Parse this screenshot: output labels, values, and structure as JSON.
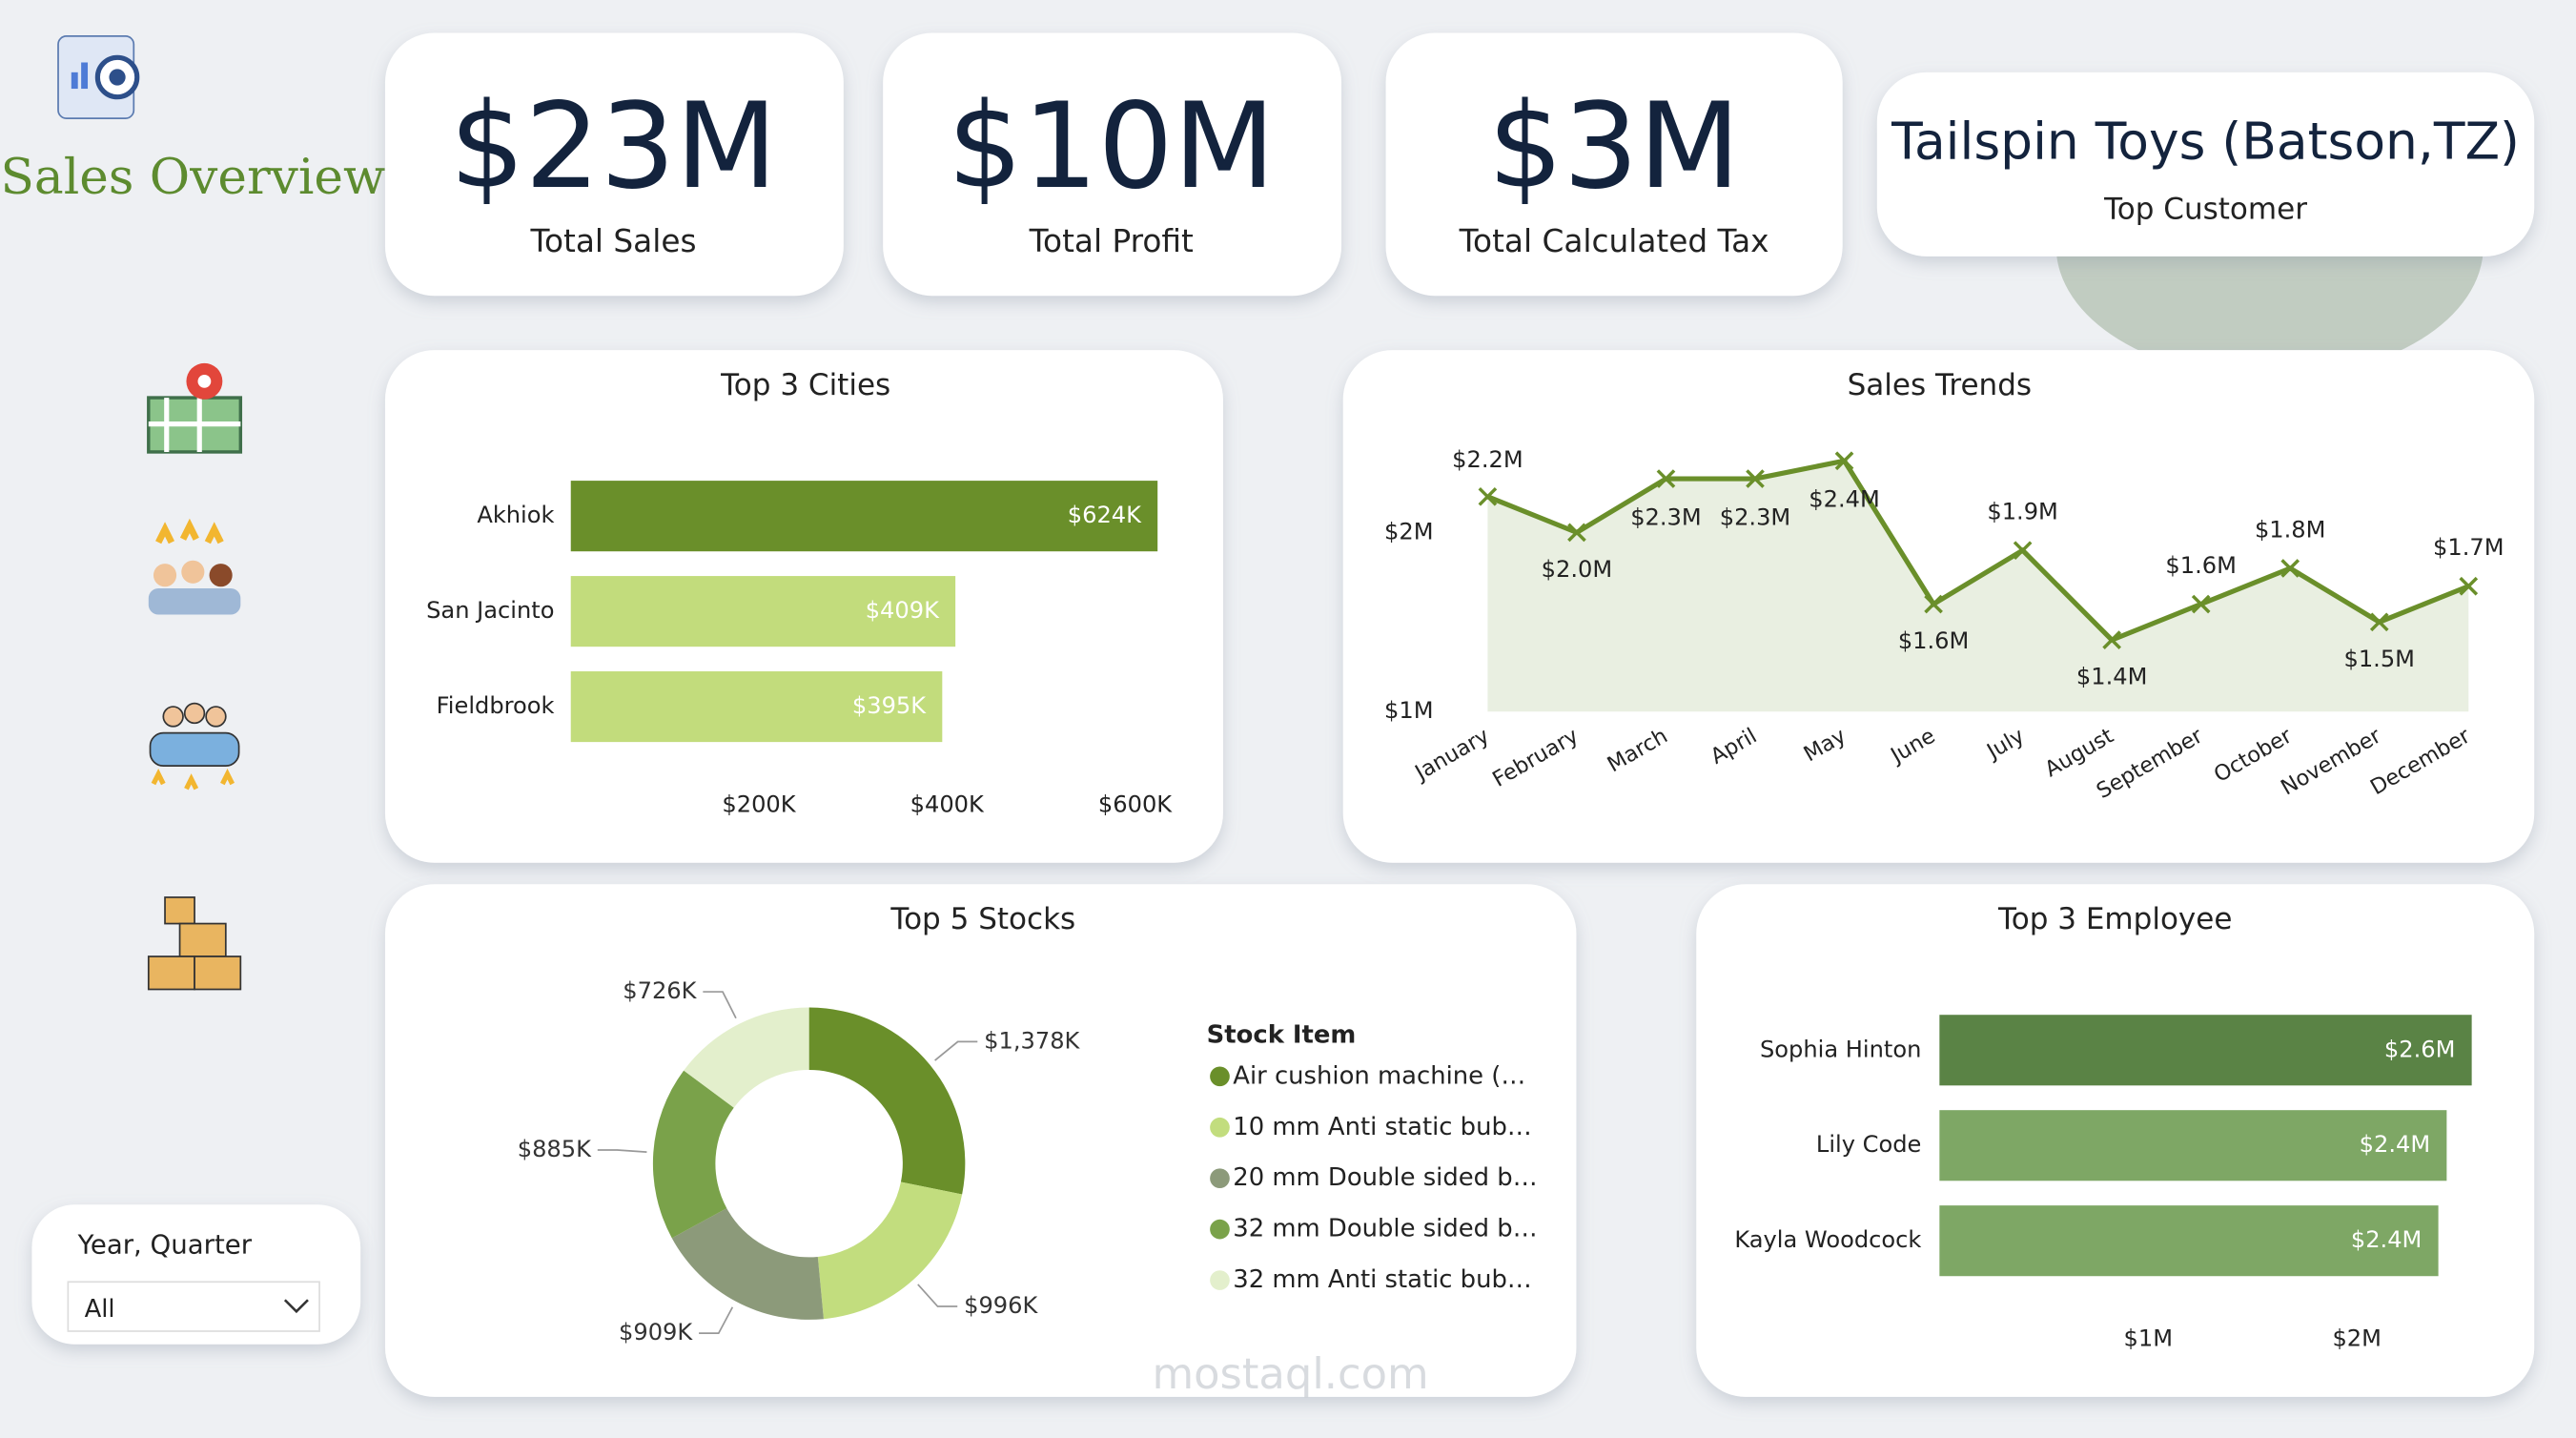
{
  "header": {
    "title": "Sales Overview"
  },
  "kpis": [
    {
      "value": "$23M",
      "label": "Total Sales"
    },
    {
      "value": "$10M",
      "label": "Total Profit"
    },
    {
      "value": "$3M",
      "label": "Total Calculated Tax"
    }
  ],
  "top_customer": {
    "value": "Tailspin Toys (Batson,TZ)",
    "label": "Top Customer"
  },
  "filter": {
    "label": "Year, Quarter",
    "value": "All"
  },
  "watermark": "mostaql.com",
  "chart_data": [
    {
      "type": "hbar",
      "title": "Top 3 Cities",
      "categories": [
        "Akhiok",
        "San Jacinto",
        "Fieldbrook"
      ],
      "values": [
        624000,
        409000,
        395000
      ],
      "value_labels": [
        "$624K",
        "$409K",
        "$395K"
      ],
      "colors": [
        "#6a8f2a",
        "#c2dc7c",
        "#c2dc7c"
      ],
      "xlim": [
        0,
        650000
      ],
      "xticks": [
        {
          "value": 200000,
          "label": "$200K"
        },
        {
          "value": 400000,
          "label": "$400K"
        },
        {
          "value": 600000,
          "label": "$600K"
        }
      ]
    },
    {
      "type": "line",
      "title": "Sales Trends",
      "categories": [
        "January",
        "February",
        "March",
        "April",
        "May",
        "June",
        "July",
        "August",
        "September",
        "October",
        "November",
        "December"
      ],
      "values": [
        2200000,
        2000000,
        2300000,
        2300000,
        2400000,
        1600000,
        1900000,
        1400000,
        1600000,
        1800000,
        1500000,
        1700000
      ],
      "value_labels": [
        "$2.2M",
        "$2.0M",
        "$2.3M",
        "$2.3M",
        "$2.4M",
        "$1.6M",
        "$1.9M",
        "$1.4M",
        "$1.6M",
        "$1.8M",
        "$1.5M",
        "$1.7M"
      ],
      "color": "#6a8f2a",
      "ylim": [
        1000000,
        2500000
      ],
      "yticks": [
        {
          "value": 1000000,
          "label": "$1M"
        },
        {
          "value": 2000000,
          "label": "$2M"
        }
      ]
    },
    {
      "type": "donut",
      "title": "Top 5 Stocks",
      "legend_title": "Stock Item",
      "categories": [
        "Air cushion machine (…",
        "10 mm Anti static bub…",
        "20 mm Double sided b…",
        "32 mm Double sided b…",
        "32 mm Anti static bub…"
      ],
      "values": [
        1378000,
        996000,
        909000,
        885000,
        726000
      ],
      "value_labels": [
        "$1,378K",
        "$996K",
        "$909K",
        "$885K",
        "$726K"
      ],
      "colors": [
        "#6a8f2a",
        "#c2dd7e",
        "#8c9a7a",
        "#7aa24a",
        "#e3efcc"
      ]
    },
    {
      "type": "hbar",
      "title": "Top 3 Employee",
      "categories": [
        "Sophia Hinton",
        "Lily Code",
        "Kayla Woodcock"
      ],
      "values": [
        2550000,
        2430000,
        2390000
      ],
      "value_labels": [
        "$2.6M",
        "$2.4M",
        "$2.4M"
      ],
      "colors": [
        "#5a8345",
        "#7ea765",
        "#7ea765"
      ],
      "xlim": [
        0,
        2700000
      ],
      "xticks": [
        {
          "value": 1000000,
          "label": "$1M"
        },
        {
          "value": 2000000,
          "label": "$2M"
        }
      ]
    }
  ]
}
